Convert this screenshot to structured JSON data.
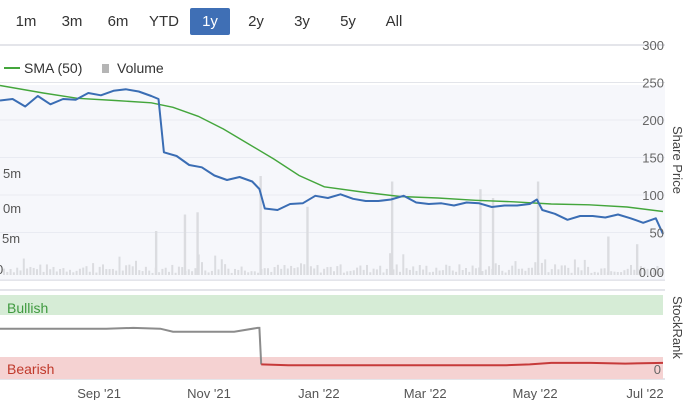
{
  "range_selector": {
    "buttons": [
      "1m",
      "3m",
      "6m",
      "YTD",
      "1y",
      "2y",
      "3y",
      "5y",
      "All"
    ],
    "active": "1y"
  },
  "colors": {
    "price_line": "#3a6db4",
    "sma_line": "#44a63c",
    "volume_bar": "#c4c4c4",
    "stockrank_line": "#8c8c8c",
    "stockrank_bearish_line": "#c63a3a",
    "bullish_band": "#d6ecd6",
    "bearish_band": "#f5d2d2",
    "active_button": "#3f6fb5"
  },
  "chart_data": {
    "type": "line",
    "legend": [
      {
        "name": "SMA (50)",
        "marker": "line"
      },
      {
        "name": "Volume",
        "marker": "square"
      }
    ],
    "share_price_axis": {
      "label": "Share Price",
      "ticks": [
        "300",
        "250",
        "200",
        "150",
        "100",
        "50",
        "0.00"
      ],
      "ylim": [
        0,
        300
      ]
    },
    "volume_axis_ticks": [
      "5m",
      "0m",
      "5m",
      "0"
    ],
    "x_ticks": [
      "Sep '21",
      "Nov '21",
      "Jan '22",
      "Mar '22",
      "May '22",
      "Jul '22"
    ],
    "price": {
      "name": "Share Price",
      "x": [
        "2021-07-08",
        "2021-07-15",
        "2021-07-22",
        "2021-07-29",
        "2021-08-05",
        "2021-08-12",
        "2021-08-19",
        "2021-08-26",
        "2021-09-02",
        "2021-09-09",
        "2021-09-16",
        "2021-09-23",
        "2021-09-30",
        "2021-10-04",
        "2021-10-07",
        "2021-10-14",
        "2021-10-21",
        "2021-10-28",
        "2021-11-04",
        "2021-11-11",
        "2021-11-18",
        "2021-11-25",
        "2021-11-29",
        "2021-12-02",
        "2021-12-09",
        "2021-12-16",
        "2021-12-23",
        "2021-12-30",
        "2022-01-06",
        "2022-01-13",
        "2022-01-20",
        "2022-01-27",
        "2022-02-03",
        "2022-02-10",
        "2022-02-17",
        "2022-02-24",
        "2022-03-03",
        "2022-03-10",
        "2022-03-17",
        "2022-03-24",
        "2022-03-31",
        "2022-04-07",
        "2022-04-14",
        "2022-04-21",
        "2022-04-28",
        "2022-05-02",
        "2022-05-05",
        "2022-05-12",
        "2022-05-19",
        "2022-05-26",
        "2022-06-02",
        "2022-06-09",
        "2022-06-16",
        "2022-06-23",
        "2022-06-30",
        "2022-07-07",
        "2022-07-11"
      ],
      "y": [
        226,
        228,
        218,
        232,
        221,
        228,
        227,
        236,
        233,
        239,
        241,
        238,
        232,
        228,
        157,
        152,
        140,
        137,
        126,
        120,
        124,
        118,
        108,
        82,
        80,
        88,
        89,
        99,
        96,
        101,
        95,
        92,
        92,
        94,
        99,
        90,
        88,
        89,
        86,
        90,
        89,
        84,
        86,
        86,
        88,
        94,
        80,
        75,
        67,
        72,
        72,
        70,
        74,
        69,
        63,
        69,
        48
      ]
    },
    "sma": {
      "name": "SMA (50)",
      "x": [
        "2021-07-08",
        "2021-08-01",
        "2021-08-20",
        "2021-09-10",
        "2021-09-30",
        "2021-10-12",
        "2021-10-26",
        "2021-11-09",
        "2021-11-23",
        "2021-12-07",
        "2021-12-21",
        "2022-01-04",
        "2022-01-25",
        "2022-02-15",
        "2022-03-08",
        "2022-03-29",
        "2022-04-19",
        "2022-05-10",
        "2022-05-31",
        "2022-06-21",
        "2022-07-11"
      ],
      "y": [
        246,
        236,
        229,
        226,
        223,
        217,
        205,
        188,
        168,
        148,
        126,
        111,
        104,
        98,
        96,
        93,
        91,
        88,
        87,
        84,
        78
      ]
    },
    "volume": {
      "name": "Volume",
      "spikes": [
        {
          "x": "2021-10-02",
          "value": 40
        },
        {
          "x": "2021-10-18",
          "value": 55
        },
        {
          "x": "2021-10-25",
          "value": 57
        },
        {
          "x": "2021-11-29",
          "value": 90
        },
        {
          "x": "2021-12-25",
          "value": 62
        },
        {
          "x": "2022-02-10",
          "value": 85
        },
        {
          "x": "2022-03-31",
          "value": 78
        },
        {
          "x": "2022-04-07",
          "value": 70
        },
        {
          "x": "2022-05-02",
          "value": 85
        },
        {
          "x": "2022-06-10",
          "value": 35
        },
        {
          "x": "2022-06-26",
          "value": 28
        }
      ]
    },
    "stockrank": {
      "label": "StockRank",
      "bullish_label": "Bullish",
      "bearish_label": "Bearish",
      "bottom_tick": "0",
      "ylim": [
        0,
        100
      ],
      "x": [
        "2021-07-08",
        "2021-07-20",
        "2021-08-05",
        "2021-08-20",
        "2021-09-05",
        "2021-09-20",
        "2021-10-05",
        "2021-10-12",
        "2021-10-20",
        "2021-11-01",
        "2021-11-15",
        "2021-11-28",
        "2021-11-29",
        "2021-11-30",
        "2021-12-15",
        "2022-01-15",
        "2022-02-15",
        "2022-03-15",
        "2022-04-15",
        "2022-04-28",
        "2022-05-10",
        "2022-06-01",
        "2022-06-20",
        "2022-07-11"
      ],
      "y": [
        57,
        57,
        57,
        57,
        57,
        58,
        57,
        53,
        53,
        53,
        53,
        58,
        58,
        10,
        9,
        9,
        9,
        9,
        9,
        10,
        12,
        12,
        11,
        12
      ],
      "bearish_from": "2021-11-30"
    }
  }
}
